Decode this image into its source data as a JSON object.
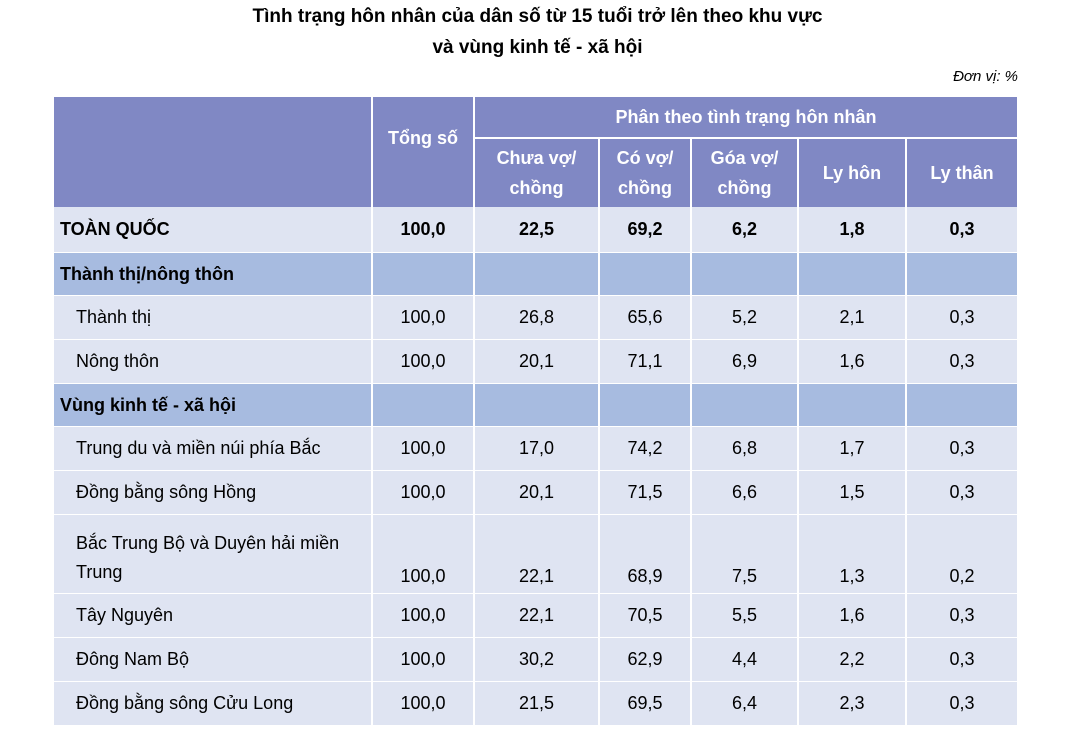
{
  "title_line1": "Tình trạng hôn nhân của dân số từ 15 tuổi trở lên theo khu vực",
  "title_line2": "và vùng kinh tế - xã hội",
  "unit": "Đơn vị: %",
  "header": {
    "total": "Tổng số",
    "group": "Phân theo tình trạng hôn nhân",
    "cols": [
      "Chưa vợ/ chồng",
      "Có vợ/ chồng",
      "Góa vợ/ chồng",
      "Ly hôn",
      "Ly thân"
    ]
  },
  "rows": [
    {
      "kind": "total",
      "label": "TOÀN QUỐC",
      "values": [
        "100,0",
        "22,5",
        "69,2",
        "6,2",
        "1,8",
        "0,3"
      ]
    },
    {
      "kind": "section",
      "label": "Thành thị/nông thôn"
    },
    {
      "kind": "data",
      "label": "Thành thị",
      "values": [
        "100,0",
        "26,8",
        "65,6",
        "5,2",
        "2,1",
        "0,3"
      ]
    },
    {
      "kind": "data",
      "label": "Nông thôn",
      "values": [
        "100,0",
        "20,1",
        "71,1",
        "6,9",
        "1,6",
        "0,3"
      ]
    },
    {
      "kind": "section",
      "label": "Vùng kinh tế - xã hội"
    },
    {
      "kind": "data",
      "label": "Trung du và miền núi phía Bắc",
      "values": [
        "100,0",
        "17,0",
        "74,2",
        "6,8",
        "1,7",
        "0,3"
      ]
    },
    {
      "kind": "data",
      "label": "Đồng bằng sông Hồng",
      "values": [
        "100,0",
        "20,1",
        "71,5",
        "6,6",
        "1,5",
        "0,3"
      ]
    },
    {
      "kind": "data",
      "label": "Bắc Trung Bộ và Duyên hải miền Trung",
      "values": [
        "100,0",
        "22,1",
        "68,9",
        "7,5",
        "1,3",
        "0,2"
      ],
      "tall": true
    },
    {
      "kind": "data",
      "label": "Tây Nguyên",
      "values": [
        "100,0",
        "22,1",
        "70,5",
        "5,5",
        "1,6",
        "0,3"
      ]
    },
    {
      "kind": "data",
      "label": "Đông Nam Bộ",
      "values": [
        "100,0",
        "30,2",
        "62,9",
        "4,4",
        "2,2",
        "0,3"
      ]
    },
    {
      "kind": "data",
      "label": "Đồng bằng sông Cửu Long",
      "values": [
        "100,0",
        "21,5",
        "69,5",
        "6,4",
        "2,3",
        "0,3"
      ]
    }
  ]
}
